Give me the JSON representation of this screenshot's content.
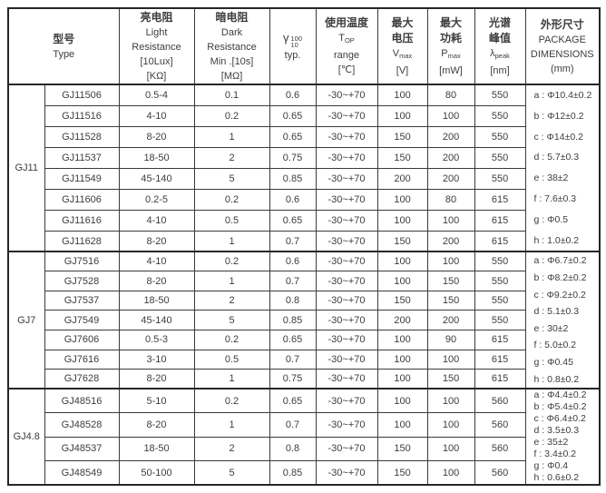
{
  "colors": {
    "background": "#ffffff",
    "border": "#262626",
    "text": "#3d3d3d"
  },
  "header": {
    "type": {
      "zh": "型号",
      "en": "Type"
    },
    "light": {
      "zh": "亮电阻",
      "lines": "Light\nResistance\n[10Lux]\n[KΩ]"
    },
    "dark": {
      "zh": "暗电阻",
      "lines": "Dark\nResistance\nMin .[10s]\n[MΩ]"
    },
    "gamma": {
      "symbol": "γ",
      "sup": "100",
      "sub": "10",
      "typ": "typ."
    },
    "temp": {
      "zh": "使用温度",
      "symbol": "T",
      "sub": "OP",
      "line": "range",
      "unit": "[℃]"
    },
    "vmax": {
      "zh1": "最大",
      "zh2": "电压",
      "symbol": "V",
      "sub": "max",
      "unit": "[V]"
    },
    "pmax": {
      "zh1": "最大",
      "zh2": "功耗",
      "symbol": "P",
      "sub": "max",
      "unit": "[mW]"
    },
    "lambda": {
      "zh1": "光谱",
      "zh2": "峰值",
      "symbol": "λ",
      "sub": "peak",
      "unit": "[nm]"
    },
    "package": {
      "zh": "外形尺寸",
      "en": "PACKAGE\nDIMENSIONS",
      "unit": "(mm)"
    }
  },
  "columns": [
    "part-number",
    "light-resistance",
    "dark-resistance",
    "gamma",
    "temp-range",
    "vmax",
    "pmax",
    "lambda-peak"
  ],
  "sections": [
    {
      "group": "GJ11",
      "rows": [
        [
          "GJ11506",
          "0.5-4",
          "0.1",
          "0.6",
          "-30~+70",
          "100",
          "80",
          "550"
        ],
        [
          "GJ11516",
          "4-10",
          "0.2",
          "0.65",
          "-30~+70",
          "100",
          "100",
          "550"
        ],
        [
          "GJ11528",
          "8-20",
          "1",
          "0.65",
          "-30~+70",
          "150",
          "200",
          "550"
        ],
        [
          "GJ11537",
          "18-50",
          "2",
          "0.75",
          "-30~+70",
          "150",
          "200",
          "550"
        ],
        [
          "GJ11549",
          "45-140",
          "5",
          "0.85",
          "-30~+70",
          "200",
          "200",
          "550"
        ],
        [
          "GJ11606",
          "0.2-5",
          "0.2",
          "0.6",
          "-30~+70",
          "100",
          "80",
          "615"
        ],
        [
          "GJ11616",
          "4-10",
          "0.5",
          "0.65",
          "-30~+70",
          "100",
          "100",
          "615"
        ],
        [
          "GJ11628",
          "8-20",
          "1",
          "0.7",
          "-30~+70",
          "150",
          "200",
          "615"
        ]
      ],
      "package": [
        "a : Φ10.4±0.2",
        "b : Φ12±0.2",
        "c : Φ14±0.2",
        "d : 5.7±0.3",
        "e : 38±2",
        "f : 7.6±0.3",
        "g : Φ0.5",
        "h : 1.0±0.2"
      ]
    },
    {
      "group": "GJ7",
      "rows": [
        [
          "GJ7516",
          "4-10",
          "0.2",
          "0.6",
          "-30~+70",
          "100",
          "100",
          "550"
        ],
        [
          "GJ7528",
          "8-20",
          "1",
          "0.7",
          "-30~+70",
          "100",
          "150",
          "550"
        ],
        [
          "GJ7537",
          "18-50",
          "2",
          "0.8",
          "-30~+70",
          "150",
          "150",
          "550"
        ],
        [
          "GJ7549",
          "45-140",
          "5",
          "0.85",
          "-30~+70",
          "200",
          "200",
          "550"
        ],
        [
          "GJ7606",
          "0.5-3",
          "0.2",
          "0.65",
          "-30~+70",
          "100",
          "90",
          "615"
        ],
        [
          "GJ7616",
          "3-10",
          "0.5",
          "0.7",
          "-30~+70",
          "100",
          "100",
          "615"
        ],
        [
          "GJ7628",
          "8-20",
          "1",
          "0.75",
          "-30~+70",
          "100",
          "150",
          "615"
        ]
      ],
      "package": [
        "a : Φ6.7±0.2",
        "b : Φ8.2±0.2",
        "c : Φ9.2±0.2",
        "d : 5.1±0.3",
        "e : 30±2",
        "f : 5.0±0.2",
        "g : Φ0.45",
        "h : 0.8±0.2"
      ]
    },
    {
      "group": "GJ4.8",
      "rows": [
        [
          "GJ48516",
          "5-10",
          "0.2",
          "0.65",
          "-30~+70",
          "100",
          "100",
          "560"
        ],
        [
          "GJ48528",
          "8-20",
          "1",
          "0.7",
          "-30~+70",
          "100",
          "100",
          "560"
        ],
        [
          "GJ48537",
          "18-50",
          "2",
          "0.8",
          "-30~+70",
          "150",
          "100",
          "560"
        ],
        [
          "GJ48549",
          "50-100",
          "5",
          "0.85",
          "-30~+70",
          "150",
          "100",
          "560"
        ]
      ],
      "package": [
        "a : Φ4.4±0.2",
        "b : Φ5.4±0.2",
        "c : Φ6.4±0.2",
        "d : 3.5±0.3",
        "e : 35±2",
        "f : 3.4±0.2",
        "g : Φ0.4",
        "h : 0.6±0.2"
      ]
    }
  ]
}
